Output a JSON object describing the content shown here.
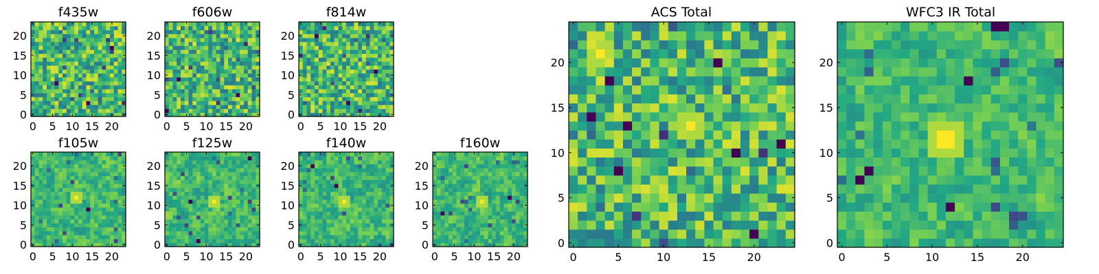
{
  "colormap": [
    "#440154",
    "#414487",
    "#2a788e",
    "#22a884",
    "#7ad151",
    "#fde725"
  ],
  "chart_data": [
    {
      "type": "heatmap",
      "title": "f435w",
      "shape": [
        24,
        24
      ],
      "colormap": "viridis",
      "xlim": [
        -0.5,
        23.5
      ],
      "ylim": [
        -0.5,
        23.5
      ],
      "xticks": [
        0,
        5,
        10,
        15,
        20
      ],
      "xtick_labels": [
        "0",
        "5",
        "10",
        "15",
        "20"
      ],
      "yticks": [
        0,
        5,
        10,
        15,
        20
      ],
      "ytick_labels": [
        "0",
        "5",
        "10",
        "15",
        "20"
      ],
      "bright_spots": [],
      "dark_spots": [
        [
          6,
          8
        ],
        [
          14,
          3
        ],
        [
          20,
          17
        ]
      ],
      "smooth": 0,
      "seed": 11
    },
    {
      "type": "heatmap",
      "title": "f606w",
      "shape": [
        24,
        24
      ],
      "colormap": "viridis",
      "xlim": [
        -0.5,
        23.5
      ],
      "ylim": [
        -0.5,
        23.5
      ],
      "xticks": [
        0,
        5,
        10,
        15,
        20
      ],
      "xtick_labels": [
        "0",
        "5",
        "10",
        "15",
        "20"
      ],
      "yticks": [
        0,
        5,
        10,
        15,
        20
      ],
      "ytick_labels": [
        "0",
        "5",
        "10",
        "15",
        "20"
      ],
      "bright_spots": [],
      "dark_spots": [
        [
          0,
          1
        ],
        [
          3,
          9
        ],
        [
          18,
          5
        ]
      ],
      "smooth": 0,
      "seed": 23
    },
    {
      "type": "heatmap",
      "title": "f814w",
      "shape": [
        24,
        24
      ],
      "colormap": "viridis",
      "xlim": [
        -0.5,
        23.5
      ],
      "ylim": [
        -0.5,
        23.5
      ],
      "xticks": [
        0,
        5,
        10,
        15,
        20
      ],
      "xtick_labels": [
        "0",
        "5",
        "10",
        "15",
        "20"
      ],
      "yticks": [
        0,
        5,
        10,
        15,
        20
      ],
      "ytick_labels": [
        "0",
        "5",
        "10",
        "15",
        "20"
      ],
      "bright_spots": [],
      "dark_spots": [
        [
          4,
          20
        ],
        [
          12,
          3
        ],
        [
          19,
          11
        ]
      ],
      "smooth": 0,
      "seed": 37
    },
    {
      "type": "heatmap",
      "title": "f105w",
      "shape": [
        24,
        24
      ],
      "colormap": "viridis",
      "xlim": [
        -0.5,
        23.5
      ],
      "ylim": [
        -0.5,
        23.5
      ],
      "xticks": [
        0,
        5,
        10,
        15,
        20
      ],
      "xtick_labels": [
        "0",
        "5",
        "10",
        "15",
        "20"
      ],
      "yticks": [
        0,
        5,
        10,
        15,
        20
      ],
      "ytick_labels": [
        "0",
        "5",
        "10",
        "15",
        "20"
      ],
      "bright_spots": [
        [
          11,
          12
        ]
      ],
      "dark_spots": [
        [
          14,
          9
        ]
      ],
      "smooth": 1,
      "seed": 41
    },
    {
      "type": "heatmap",
      "title": "f125w",
      "shape": [
        24,
        24
      ],
      "colormap": "viridis",
      "xlim": [
        -0.5,
        23.5
      ],
      "ylim": [
        -0.5,
        23.5
      ],
      "xticks": [
        0,
        5,
        10,
        15,
        20
      ],
      "xtick_labels": [
        "0",
        "5",
        "10",
        "15",
        "20"
      ],
      "yticks": [
        0,
        5,
        10,
        15,
        20
      ],
      "ytick_labels": [
        "0",
        "5",
        "10",
        "15",
        "20"
      ],
      "bright_spots": [
        [
          12,
          11
        ]
      ],
      "dark_spots": [
        [
          8,
          1
        ],
        [
          6,
          11
        ],
        [
          21,
          22
        ]
      ],
      "smooth": 1,
      "seed": 53
    },
    {
      "type": "heatmap",
      "title": "f140w",
      "shape": [
        24,
        24
      ],
      "colormap": "viridis",
      "xlim": [
        -0.5,
        23.5
      ],
      "ylim": [
        -0.5,
        23.5
      ],
      "xticks": [
        0,
        5,
        10,
        15,
        20
      ],
      "xtick_labels": [
        "0",
        "5",
        "10",
        "15",
        "20"
      ],
      "yticks": [
        0,
        5,
        10,
        15,
        20
      ],
      "ytick_labels": [
        "0",
        "5",
        "10",
        "15",
        "20"
      ],
      "bright_spots": [
        [
          11,
          11
        ]
      ],
      "dark_spots": [
        [
          3,
          20
        ],
        [
          9,
          15
        ]
      ],
      "smooth": 1,
      "seed": 67
    },
    {
      "type": "heatmap",
      "title": "f160w",
      "shape": [
        24,
        24
      ],
      "colormap": "viridis",
      "xlim": [
        -0.5,
        23.5
      ],
      "ylim": [
        -0.5,
        23.5
      ],
      "xticks": [
        0,
        5,
        10,
        15,
        20
      ],
      "xtick_labels": [
        "0",
        "5",
        "10",
        "15",
        "20"
      ],
      "yticks": [
        0,
        5,
        10,
        15,
        20
      ],
      "ytick_labels": [
        "0",
        "5",
        "10",
        "15",
        "20"
      ],
      "bright_spots": [
        [
          12,
          11
        ]
      ],
      "dark_spots": [
        [
          2,
          8
        ],
        [
          19,
          12
        ]
      ],
      "smooth": 1,
      "seed": 79
    },
    {
      "type": "heatmap",
      "title": "ACS Total",
      "shape": [
        25,
        25
      ],
      "colormap": "viridis",
      "xlim": [
        -0.5,
        24.5
      ],
      "ylim": [
        -0.5,
        24.5
      ],
      "xticks": [
        0,
        5,
        10,
        15,
        20
      ],
      "xtick_labels": [
        "0",
        "5",
        "10",
        "15",
        "20"
      ],
      "yticks": [
        0,
        5,
        10,
        15,
        20
      ],
      "ytick_labels": [
        "0",
        "5",
        "10",
        "15",
        "20"
      ],
      "bright_spots": [
        [
          3,
          21
        ],
        [
          13,
          13
        ]
      ],
      "dark_spots": [
        [
          4,
          18
        ],
        [
          2,
          14
        ],
        [
          6,
          13
        ],
        [
          16,
          20
        ],
        [
          23,
          11
        ],
        [
          18,
          10
        ],
        [
          5,
          8
        ],
        [
          20,
          1
        ]
      ],
      "smooth": 0,
      "seed": 97
    },
    {
      "type": "heatmap",
      "title": "WFC3 IR Total",
      "shape": [
        25,
        25
      ],
      "colormap": "viridis",
      "xlim": [
        -0.5,
        24.5
      ],
      "ylim": [
        -0.5,
        24.5
      ],
      "xticks": [
        0,
        5,
        10,
        15,
        20
      ],
      "xtick_labels": [
        "0",
        "5",
        "10",
        "15",
        "20"
      ],
      "yticks": [
        0,
        5,
        10,
        15,
        20
      ],
      "ytick_labels": [
        "0",
        "5",
        "10",
        "15",
        "20"
      ],
      "bright_spots": [
        [
          11,
          11
        ],
        [
          12,
          12
        ],
        [
          11,
          12
        ],
        [
          12,
          11
        ]
      ],
      "dark_spots": [
        [
          2,
          7
        ],
        [
          3,
          8
        ],
        [
          14,
          18
        ],
        [
          17,
          24
        ],
        [
          18,
          24
        ],
        [
          12,
          4
        ]
      ],
      "smooth": 1,
      "seed": 113
    }
  ]
}
